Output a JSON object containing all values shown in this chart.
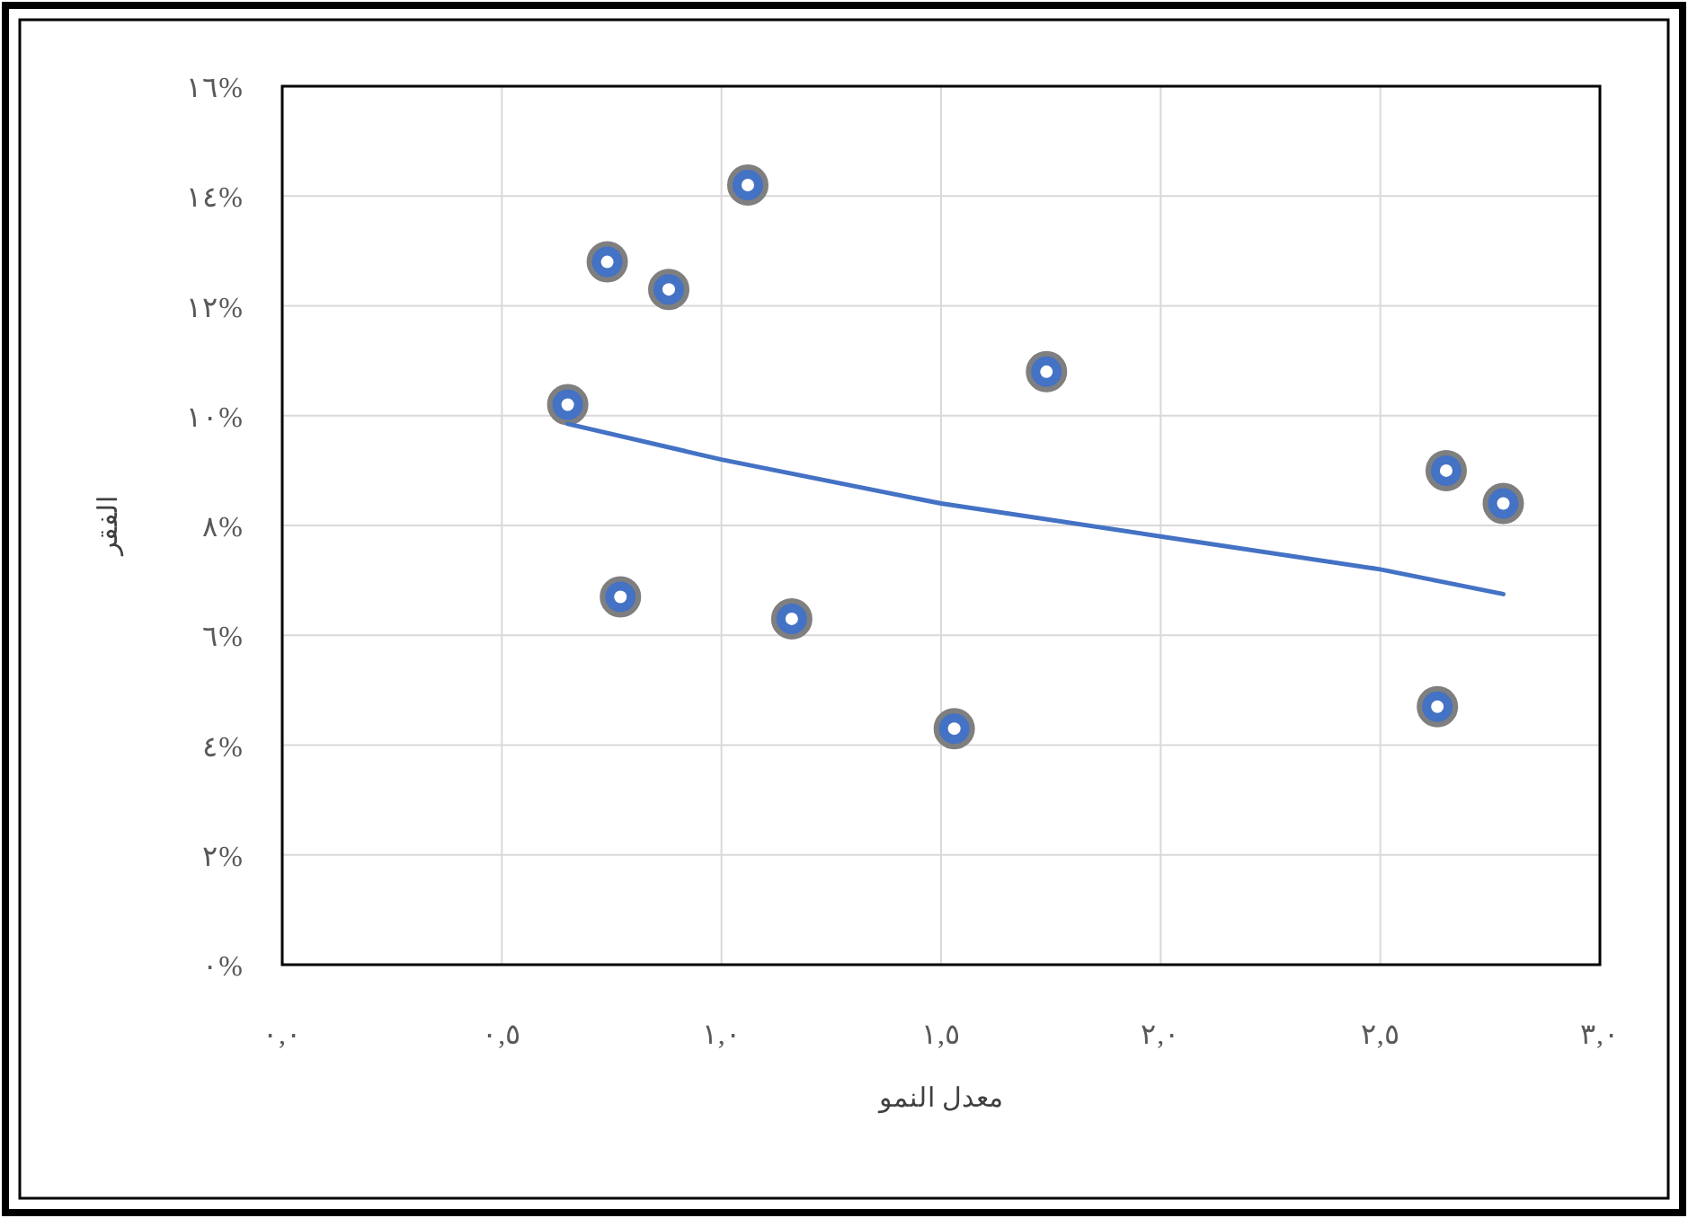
{
  "chart_data": {
    "type": "scatter",
    "xlabel": "معدل النمو",
    "ylabel": "الفقر",
    "xlim": [
      0,
      3
    ],
    "xticks": [
      {
        "value": 0,
        "label": "٠,٠"
      },
      {
        "value": 0.5,
        "label": "٠,٥"
      },
      {
        "value": 1,
        "label": "١,٠"
      },
      {
        "value": 1.5,
        "label": "١,٥"
      },
      {
        "value": 2,
        "label": "٢,٠"
      },
      {
        "value": 2.5,
        "label": "٢,٥"
      },
      {
        "value": 3,
        "label": "٣,٠"
      }
    ],
    "ylim": [
      0,
      16
    ],
    "yticks": [
      {
        "value": 0,
        "label": "٠%"
      },
      {
        "value": 2,
        "label": "٢%"
      },
      {
        "value": 4,
        "label": "٤%"
      },
      {
        "value": 6,
        "label": "٦%"
      },
      {
        "value": 8,
        "label": "٨%"
      },
      {
        "value": 10,
        "label": "١٠%"
      },
      {
        "value": 12,
        "label": "١٢%"
      },
      {
        "value": 14,
        "label": "١٤%"
      },
      {
        "value": 16,
        "label": "١٦%"
      }
    ],
    "grid": true,
    "series": [
      {
        "marker": "circle",
        "color": "#4472c4",
        "x": [
          0.65,
          0.74,
          0.88,
          1.06,
          0.77,
          1.16,
          1.53,
          1.74,
          2.65,
          2.78,
          2.63
        ],
        "values": [
          10.2,
          12.8,
          12.3,
          14.2,
          6.7,
          6.3,
          4.3,
          10.8,
          9.0,
          8.4,
          4.7
        ]
      },
      {
        "type": "line",
        "color": "#4472c4",
        "x": [
          0.65,
          1.0,
          1.5,
          2.0,
          2.5,
          2.78
        ],
        "values": [
          9.85,
          9.2,
          8.4,
          7.8,
          7.2,
          6.75
        ]
      }
    ]
  }
}
